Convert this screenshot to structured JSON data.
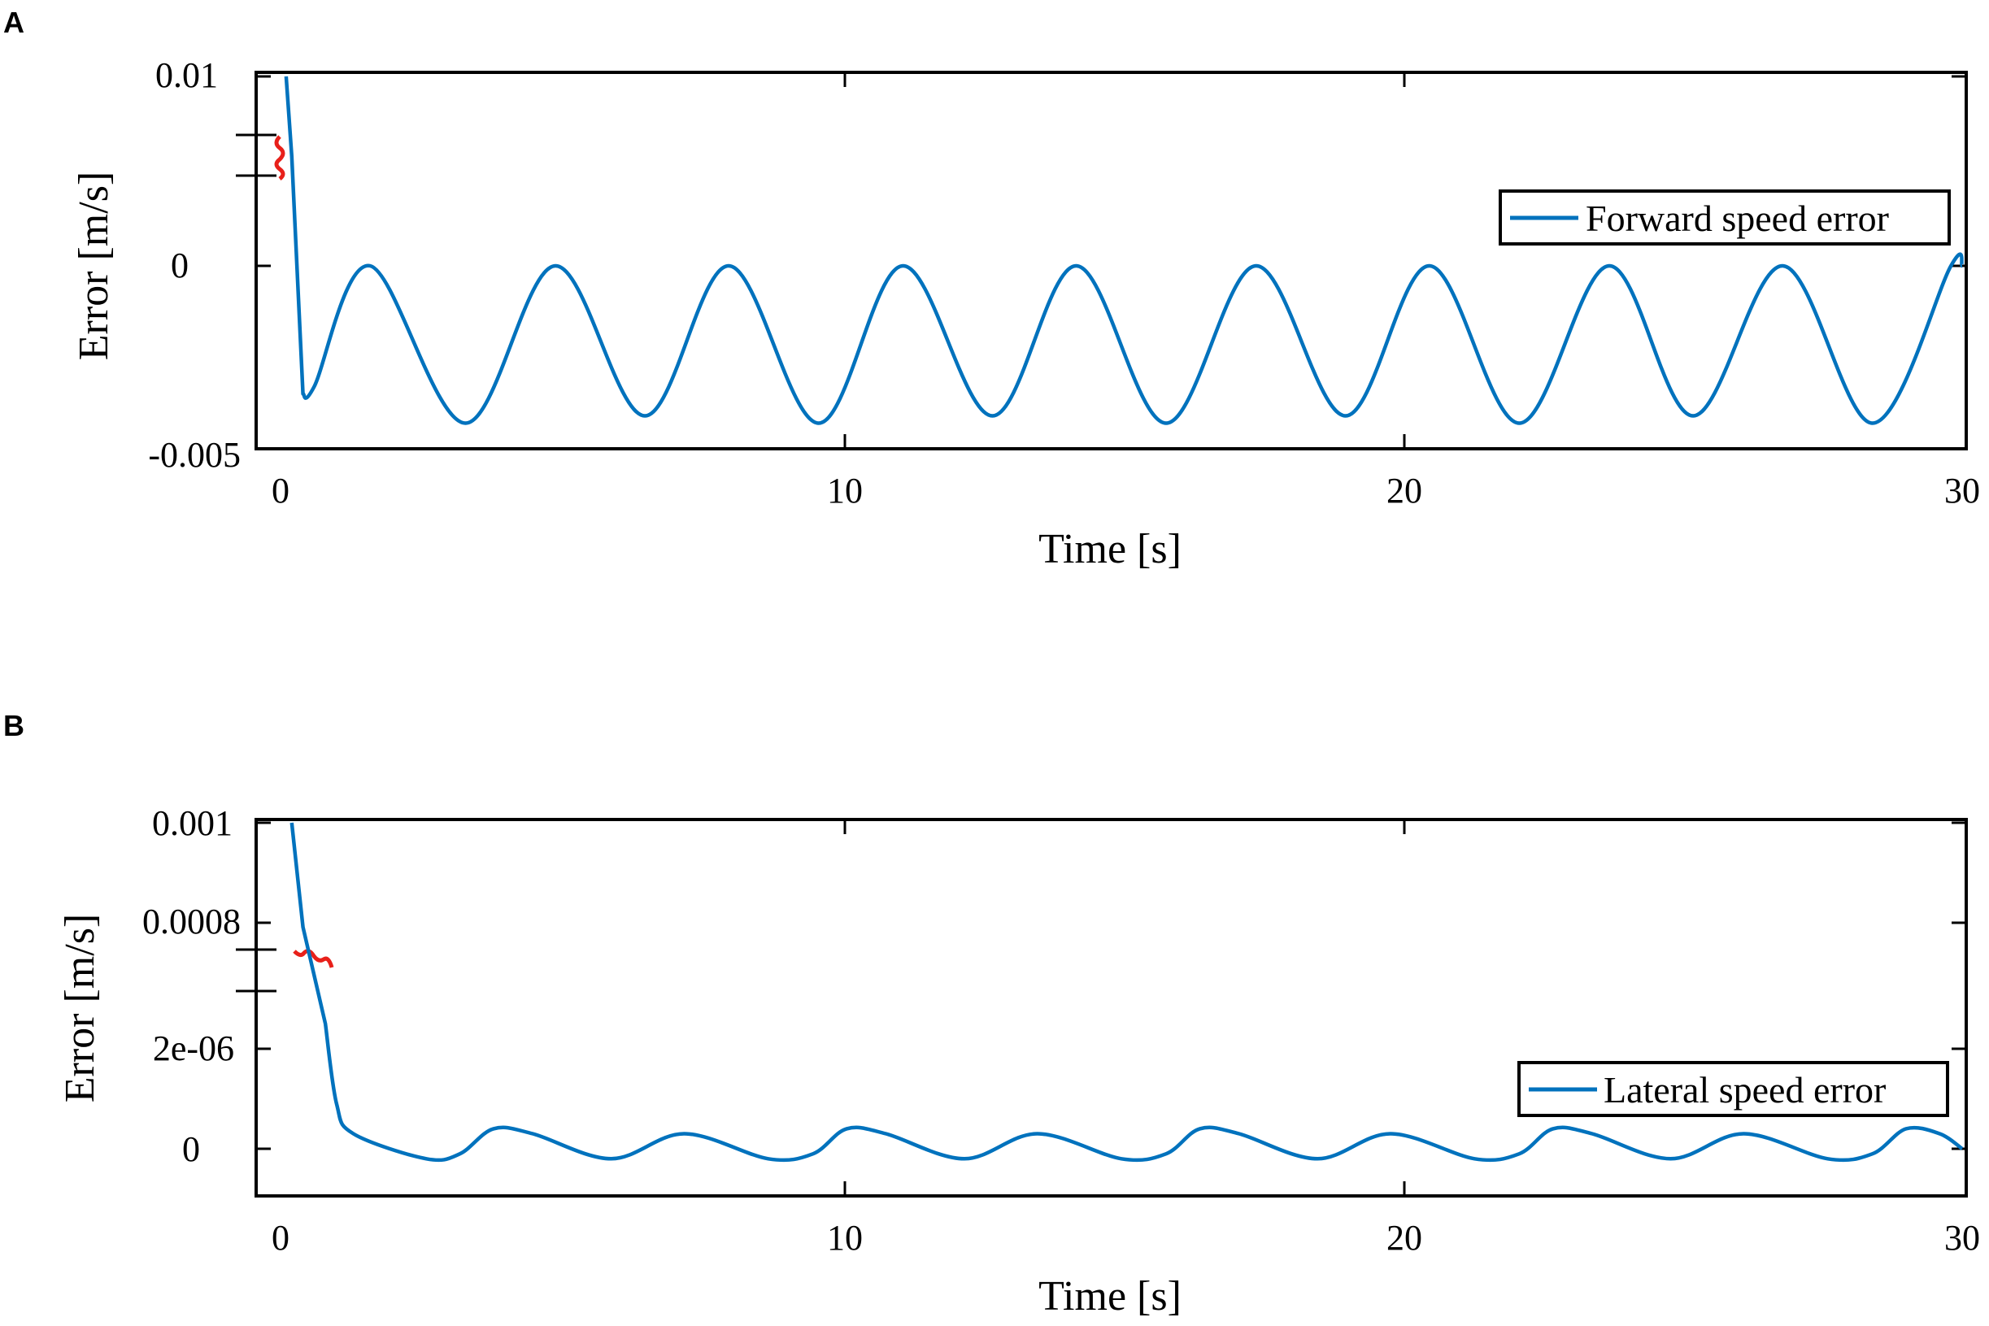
{
  "chart_data": [
    {
      "panel": "A",
      "type": "line",
      "xlabel": "Time [s]",
      "ylabel": "Error [m/s]",
      "xlim": [
        0,
        30
      ],
      "x_ticks": [
        "0",
        "10",
        "20",
        "30"
      ],
      "y_ticks": [
        "0.01",
        "0",
        "-0.005"
      ],
      "y_axis_break": true,
      "legend_position": "top-right",
      "series": [
        {
          "name": "Forward speed error",
          "color": "#0072BD",
          "x": [
            0.1,
            0.2,
            0.4,
            0.6,
            1.6,
            3.3,
            4.9,
            6.5,
            8.0,
            9.6,
            11.1,
            12.7,
            14.2,
            15.8,
            17.4,
            19.0,
            20.5,
            22.1,
            23.7,
            25.2,
            26.8,
            28.4,
            29.8,
            30.0
          ],
          "y": [
            0.01,
            0.003,
            -0.0035,
            -0.0033,
            0.0,
            -0.0043,
            0.0,
            -0.0041,
            0.0,
            -0.0043,
            0.0,
            -0.0041,
            0.0,
            -0.0043,
            0.0,
            -0.0041,
            0.0,
            -0.0043,
            0.0,
            -0.0041,
            0.0,
            -0.0043,
            0.0,
            0.0
          ]
        }
      ]
    },
    {
      "panel": "B",
      "type": "line",
      "xlabel": "Time [s]",
      "ylabel": "Error [m/s]",
      "xlim": [
        0,
        30
      ],
      "x_ticks": [
        "0",
        "10",
        "20",
        "30"
      ],
      "y_ticks": [
        "0.001",
        "0.0008",
        "2e-06",
        "0"
      ],
      "y_axis_break": true,
      "legend_position": "bottom-right",
      "series": [
        {
          "name": "Lateral speed error",
          "color": "#0072BD",
          "x": [
            0.2,
            0.4,
            0.8,
            1.0,
            1.3,
            2.6,
            3.2,
            3.8,
            4.5,
            5.9,
            7.2,
            8.7,
            9.5,
            10.1,
            10.8,
            12.2,
            13.5,
            15.0,
            15.8,
            16.4,
            17.1,
            18.5,
            19.8,
            21.3,
            22.1,
            22.7,
            23.4,
            24.8,
            26.1,
            27.6,
            28.4,
            29.0,
            29.6,
            30.0
          ],
          "y": [
            0.001,
            0.00075,
            2.5e-06,
            9e-07,
            3e-07,
            -2e-07,
            -1e-07,
            4e-07,
            3e-07,
            -2e-07,
            3e-07,
            -2e-07,
            -1e-07,
            4e-07,
            3e-07,
            -2e-07,
            3e-07,
            -2e-07,
            -1e-07,
            4e-07,
            3e-07,
            -2e-07,
            3e-07,
            -2e-07,
            -1e-07,
            4e-07,
            3e-07,
            -2e-07,
            3e-07,
            -2e-07,
            -1e-07,
            4e-07,
            3e-07,
            0.0
          ]
        }
      ]
    }
  ]
}
